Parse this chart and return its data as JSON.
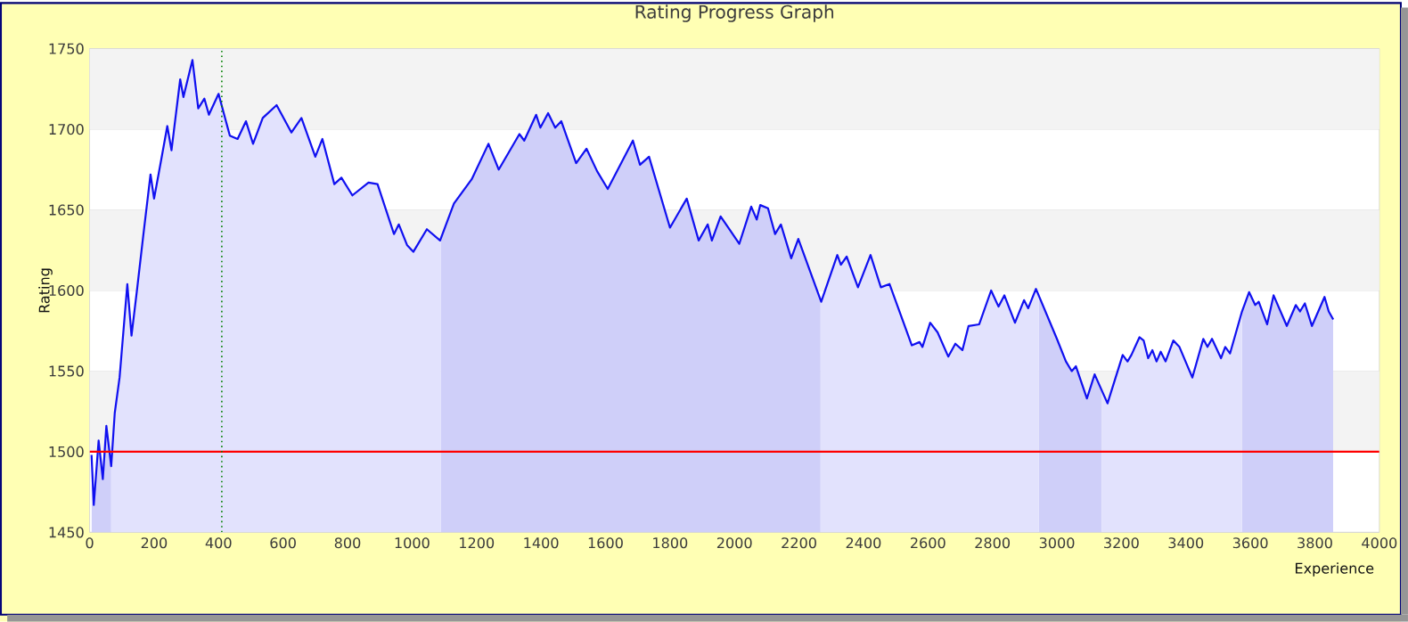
{
  "chart_data": {
    "type": "area",
    "title": "Rating Progress Graph",
    "xlabel": "Experience",
    "ylabel": "Rating",
    "x": [
      6,
      13,
      28,
      41,
      52,
      67,
      78,
      93,
      117,
      130,
      148,
      167,
      189,
      200,
      222,
      241,
      254,
      281,
      291,
      319,
      337,
      356,
      370,
      400,
      435,
      459,
      485,
      507,
      537,
      580,
      626,
      657,
      700,
      722,
      759,
      781,
      815,
      865,
      893,
      944,
      959,
      985,
      1004,
      1046,
      1087,
      1130,
      1185,
      1237,
      1269,
      1333,
      1348,
      1385,
      1398,
      1422,
      1444,
      1463,
      1509,
      1541,
      1574,
      1607,
      1685,
      1707,
      1735,
      1800,
      1852,
      1889,
      1917,
      1930,
      1957,
      2015,
      2052,
      2069,
      2080,
      2104,
      2126,
      2144,
      2176,
      2198,
      2269,
      2319,
      2330,
      2348,
      2383,
      2422,
      2454,
      2481,
      2550,
      2574,
      2583,
      2607,
      2630,
      2663,
      2685,
      2707,
      2726,
      2759,
      2796,
      2819,
      2837,
      2870,
      2898,
      2911,
      2935,
      3000,
      3028,
      3046,
      3059,
      3093,
      3117,
      3157,
      3204,
      3219,
      3231,
      3256,
      3269,
      3283,
      3296,
      3309,
      3322,
      3337,
      3361,
      3380,
      3420,
      3454,
      3467,
      3481,
      3509,
      3522,
      3537,
      3574,
      3596,
      3615,
      3626,
      3652,
      3672,
      3713,
      3741,
      3754,
      3769,
      3791,
      3830,
      3843,
      3857
    ],
    "series": [
      {
        "color": "#1010f0",
        "values": [
          1498,
          1467,
          1507,
          1483,
          1516,
          1491,
          1524,
          1546,
          1604,
          1572,
          1602,
          1635,
          1672,
          1657,
          1681,
          1702,
          1687,
          1731,
          1720,
          1743,
          1713,
          1719,
          1709,
          1722,
          1696,
          1694,
          1705,
          1691,
          1707,
          1715,
          1698,
          1707,
          1683,
          1694,
          1666,
          1670,
          1659,
          1667,
          1666,
          1635,
          1641,
          1628,
          1624,
          1638,
          1631,
          1654,
          1669,
          1691,
          1675,
          1697,
          1693,
          1709,
          1701,
          1710,
          1701,
          1705,
          1679,
          1688,
          1674,
          1663,
          1693,
          1678,
          1683,
          1639,
          1657,
          1631,
          1641,
          1631,
          1646,
          1629,
          1652,
          1644,
          1653,
          1651,
          1635,
          1641,
          1620,
          1632,
          1593,
          1622,
          1616,
          1621,
          1602,
          1622,
          1602,
          1604,
          1566,
          1568,
          1565,
          1580,
          1574,
          1559,
          1567,
          1563,
          1578,
          1579,
          1600,
          1590,
          1597,
          1580,
          1594,
          1589,
          1601,
          1570,
          1556,
          1550,
          1553,
          1533,
          1548,
          1530,
          1560,
          1556,
          1560,
          1571,
          1569,
          1558,
          1563,
          1556,
          1562,
          1556,
          1569,
          1565,
          1546,
          1570,
          1565,
          1570,
          1558,
          1565,
          1561,
          1587,
          1599,
          1591,
          1593,
          1579,
          1597,
          1578,
          1591,
          1587,
          1592,
          1578,
          1596,
          1587,
          1582
        ]
      }
    ],
    "xlim": [
      0,
      4000
    ],
    "ylim": [
      1450,
      1750
    ],
    "xticks": [
      0,
      200,
      400,
      600,
      800,
      1000,
      1200,
      1400,
      1600,
      1800,
      2000,
      2200,
      2400,
      2600,
      2800,
      3000,
      3200,
      3400,
      3600,
      3800,
      4000
    ],
    "yticks": [
      1450,
      1500,
      1550,
      1600,
      1650,
      1700,
      1750
    ],
    "grid": "y",
    "ref_lines": [
      {
        "axis": "y",
        "value": 1500,
        "color": "#ff0000",
        "line_style": "solid"
      },
      {
        "axis": "x",
        "value": 410,
        "color": "#008000",
        "line_style": "dotted"
      }
    ],
    "bands": [
      {
        "axis": "x",
        "from": 0,
        "to": 67,
        "color": "#cfcff9"
      },
      {
        "axis": "x",
        "from": 1090,
        "to": 2267,
        "color": "#cfcff9"
      },
      {
        "axis": "x",
        "from": 2944,
        "to": 3139,
        "color": "#cfcff9"
      },
      {
        "axis": "x",
        "from": 3574,
        "to": 3857,
        "color": "#cfcff9"
      }
    ]
  }
}
